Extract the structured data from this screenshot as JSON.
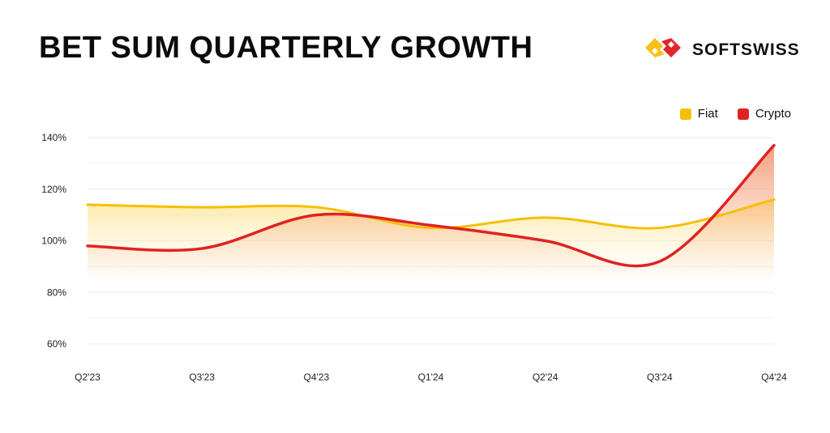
{
  "page": {
    "title": "BET SUM QUARTERLY GROWTH",
    "brand": "SOFTSWISS"
  },
  "colors": {
    "fiat": "#f5c000",
    "crypto": "#e02222",
    "brand_yellow": "#f7c11a",
    "brand_red": "#e3262b"
  },
  "icons": {
    "brand_logo": "softswiss-logo-icon"
  },
  "chart_data": {
    "type": "area",
    "title": "BET SUM QUARTERLY GROWTH",
    "xlabel": "",
    "ylabel": "",
    "categories": [
      "Q2'23",
      "Q3'23",
      "Q4'23",
      "Q1'24",
      "Q2'24",
      "Q3'24",
      "Q4'24"
    ],
    "y_ticks": [
      "60%",
      "80%",
      "100%",
      "120%",
      "140%"
    ],
    "ylim": [
      60,
      140
    ],
    "grid": true,
    "legend_position": "top-right",
    "series": [
      {
        "name": "Fiat",
        "color": "#f5c000",
        "values": [
          114,
          113,
          113,
          105,
          109,
          105,
          116
        ]
      },
      {
        "name": "Crypto",
        "color": "#e02222",
        "values": [
          98,
          97,
          110,
          106,
          100,
          92,
          137
        ]
      }
    ]
  }
}
